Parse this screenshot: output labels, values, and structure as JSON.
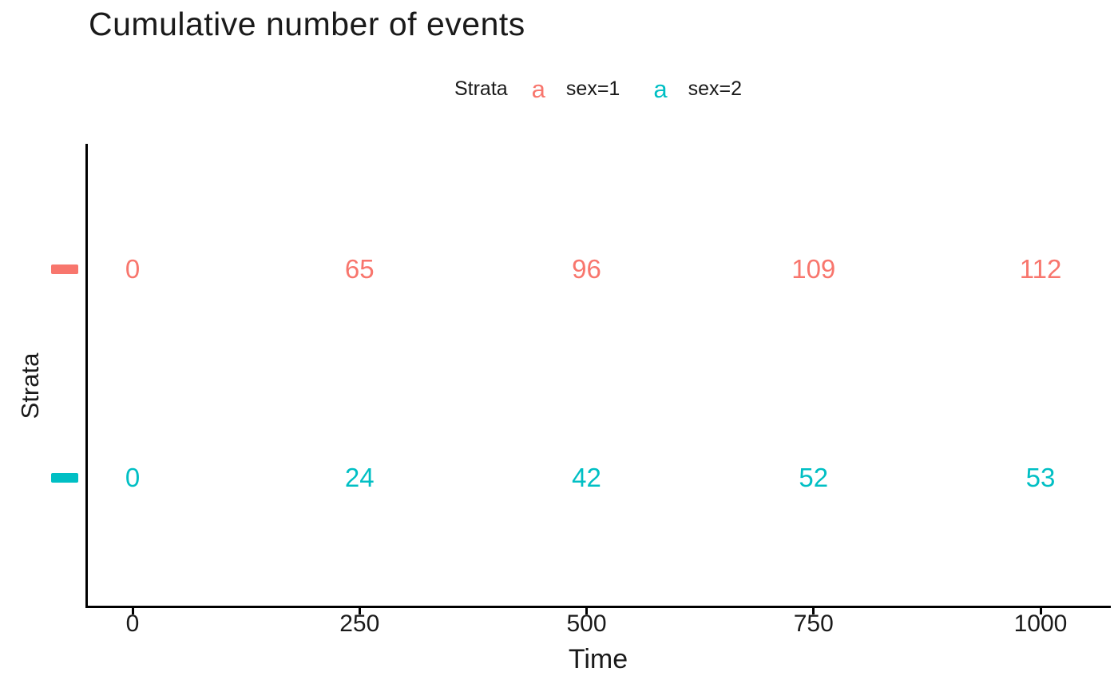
{
  "chart_data": {
    "type": "table",
    "title": "Cumulative number of events",
    "xlabel": "Time",
    "ylabel": "Strata",
    "legend_title": "Strata",
    "legend_position": "top",
    "legend_key_glyph": "a",
    "x_ticks": [
      0,
      250,
      500,
      750,
      1000
    ],
    "xlim": [
      0,
      1000
    ],
    "grid": false,
    "series": [
      {
        "name": "sex=1",
        "color": "#F8766D",
        "values": [
          0,
          65,
          96,
          109,
          112
        ]
      },
      {
        "name": "sex=2",
        "color": "#00BFC4",
        "values": [
          0,
          24,
          42,
          52,
          53
        ]
      }
    ],
    "colors": {
      "axis": "#000000",
      "text": "#1a1a1a",
      "background": "#ffffff"
    }
  }
}
